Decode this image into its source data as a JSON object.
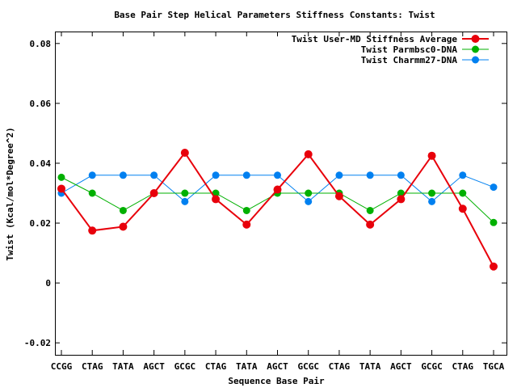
{
  "chart_data": {
    "type": "line",
    "title": "Base Pair Step Helical Parameters Stiffness Constants: Twist",
    "xlabel": "Sequence Base Pair",
    "ylabel": "Twist (Kcal/mol*Degree^2)",
    "ylim": [
      -0.024,
      0.084
    ],
    "y_ticks": [
      -0.02,
      0,
      0.02,
      0.04,
      0.06,
      0.08
    ],
    "y_tick_labels": [
      "-0.02",
      "0",
      "0.02",
      "0.04",
      "0.06",
      "0.08"
    ],
    "grid": false,
    "legend_position": "top-right",
    "categories": [
      "CCGG",
      "CTAG",
      "TATA",
      "AGCT",
      "GCGC",
      "CTAG",
      "TATA",
      "AGCT",
      "GCGC",
      "CTAG",
      "TATA",
      "AGCT",
      "GCGC",
      "CTAG",
      "TGCA"
    ],
    "series": [
      {
        "name": "Twist User-MD Stiffness Average",
        "color": "#e8000b",
        "values": [
          0.0315,
          0.0175,
          0.0188,
          0.03,
          0.0435,
          0.028,
          0.0195,
          0.0312,
          0.043,
          0.029,
          0.0195,
          0.028,
          0.0425,
          0.0248,
          0.0055
        ]
      },
      {
        "name": "Twist Parmbsc0-DNA",
        "color": "#00b000",
        "values": [
          0.0353,
          0.03,
          0.0242,
          0.03,
          0.03,
          0.03,
          0.0242,
          0.03,
          0.03,
          0.03,
          0.0242,
          0.03,
          0.03,
          0.03,
          0.0202
        ]
      },
      {
        "name": "Twist Charmm27-DNA",
        "color": "#0080f0",
        "values": [
          0.03,
          0.036,
          0.036,
          0.036,
          0.0272,
          0.036,
          0.036,
          0.036,
          0.0272,
          0.036,
          0.036,
          0.036,
          0.0272,
          0.036,
          0.032
        ]
      }
    ]
  }
}
